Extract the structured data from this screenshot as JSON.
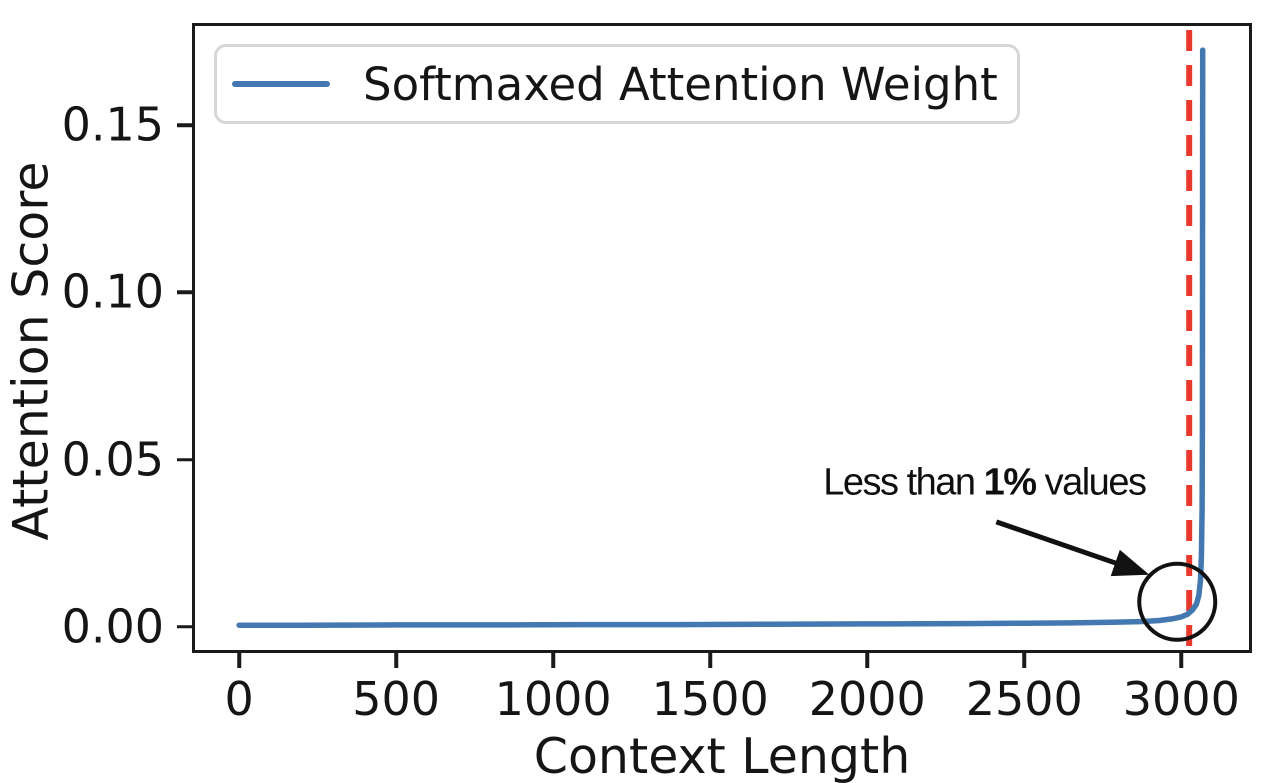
{
  "chart_data": {
    "type": "line",
    "title": "",
    "xlabel": "Context Length",
    "ylabel": "Attention Score",
    "xlim": [
      -150,
      3225
    ],
    "ylim": [
      -0.0078,
      0.1805
    ],
    "grid": false,
    "xticks": {
      "values": [
        0,
        500,
        1000,
        1500,
        2000,
        2500,
        3000
      ],
      "labels": [
        "0",
        "500",
        "1000",
        "1500",
        "2000",
        "2500",
        "3000"
      ]
    },
    "yticks": {
      "values": [
        0.0,
        0.05,
        0.1,
        0.15
      ],
      "labels": [
        "0.00",
        "0.05",
        "0.10",
        "0.15"
      ]
    },
    "legend": {
      "position": "upper left",
      "entries": [
        {
          "label": "Softmaxed Attention Weight",
          "color": "#4478b1"
        }
      ]
    },
    "series": [
      {
        "name": "Softmaxed Attention Weight",
        "color": "#4478b1",
        "points": [
          [
            0,
            0.0005
          ],
          [
            200,
            0.0005
          ],
          [
            500,
            0.0006
          ],
          [
            800,
            0.0006
          ],
          [
            1100,
            0.0007
          ],
          [
            1400,
            0.0007
          ],
          [
            1700,
            0.0008
          ],
          [
            2000,
            0.0009
          ],
          [
            2300,
            0.001
          ],
          [
            2500,
            0.0011
          ],
          [
            2650,
            0.0012
          ],
          [
            2780,
            0.0014
          ],
          [
            2870,
            0.0016
          ],
          [
            2930,
            0.0019
          ],
          [
            2970,
            0.0024
          ],
          [
            3000,
            0.003
          ],
          [
            3020,
            0.0038
          ],
          [
            3035,
            0.005
          ],
          [
            3048,
            0.0068
          ],
          [
            3056,
            0.0095
          ],
          [
            3061,
            0.014
          ],
          [
            3064,
            0.021
          ],
          [
            3066,
            0.035
          ],
          [
            3067,
            0.06
          ],
          [
            3067.5,
            0.1
          ],
          [
            3068,
            0.1724
          ]
        ]
      }
    ],
    "annotations": {
      "vline": {
        "x": 3025,
        "color": "#e8392c",
        "style": "dashed"
      },
      "circle": {
        "cx": 2987,
        "cy": 0.0075,
        "radius_px": 38,
        "color": "#111111"
      },
      "arrow": {
        "from": [
          2411,
          0.0314
        ],
        "to": [
          2898,
          0.0156
        ],
        "color": "#111111"
      },
      "label": {
        "x": 1860,
        "y": 0.043,
        "full_text": "Less than 1% values",
        "parts": [
          {
            "text": "Less than ",
            "bold": false
          },
          {
            "text": "1%",
            "bold": true
          },
          {
            "text": " values",
            "bold": false
          }
        ]
      }
    }
  }
}
